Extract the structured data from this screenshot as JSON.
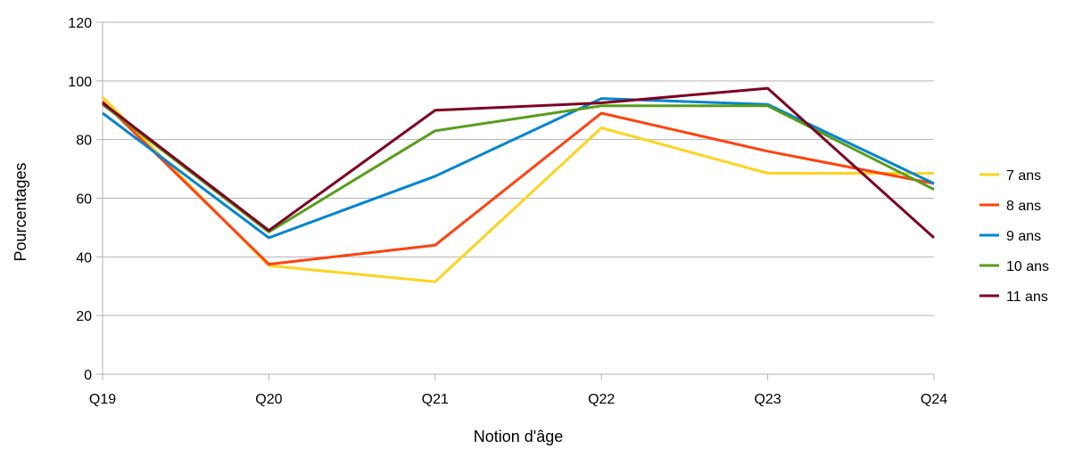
{
  "chart_data": {
    "type": "line",
    "title": "",
    "xlabel": "Notion d'âge",
    "ylabel": "Pourcentages",
    "categories": [
      "Q19",
      "Q20",
      "Q21",
      "Q22",
      "Q23",
      "Q24"
    ],
    "ylim": [
      0,
      120
    ],
    "yticks": [
      0,
      20,
      40,
      60,
      80,
      100,
      120
    ],
    "grid": true,
    "legend_position": "right",
    "series": [
      {
        "name": "7 ans",
        "color": "#ffd320",
        "values": [
          94.5,
          37,
          31.5,
          84,
          68.5,
          68.5
        ]
      },
      {
        "name": "8 ans",
        "color": "#ff420e",
        "values": [
          93,
          37.5,
          44,
          89,
          76,
          65
        ]
      },
      {
        "name": "9 ans",
        "color": "#0084d1",
        "values": [
          89,
          46.5,
          67.5,
          94,
          92,
          65
        ]
      },
      {
        "name": "10 ans",
        "color": "#579d1c",
        "values": [
          92,
          48.5,
          83,
          91.5,
          91.5,
          63
        ]
      },
      {
        "name": "11 ans",
        "color": "#7e0021",
        "values": [
          92.5,
          49,
          90,
          92.5,
          97.5,
          46.5
        ]
      }
    ]
  }
}
